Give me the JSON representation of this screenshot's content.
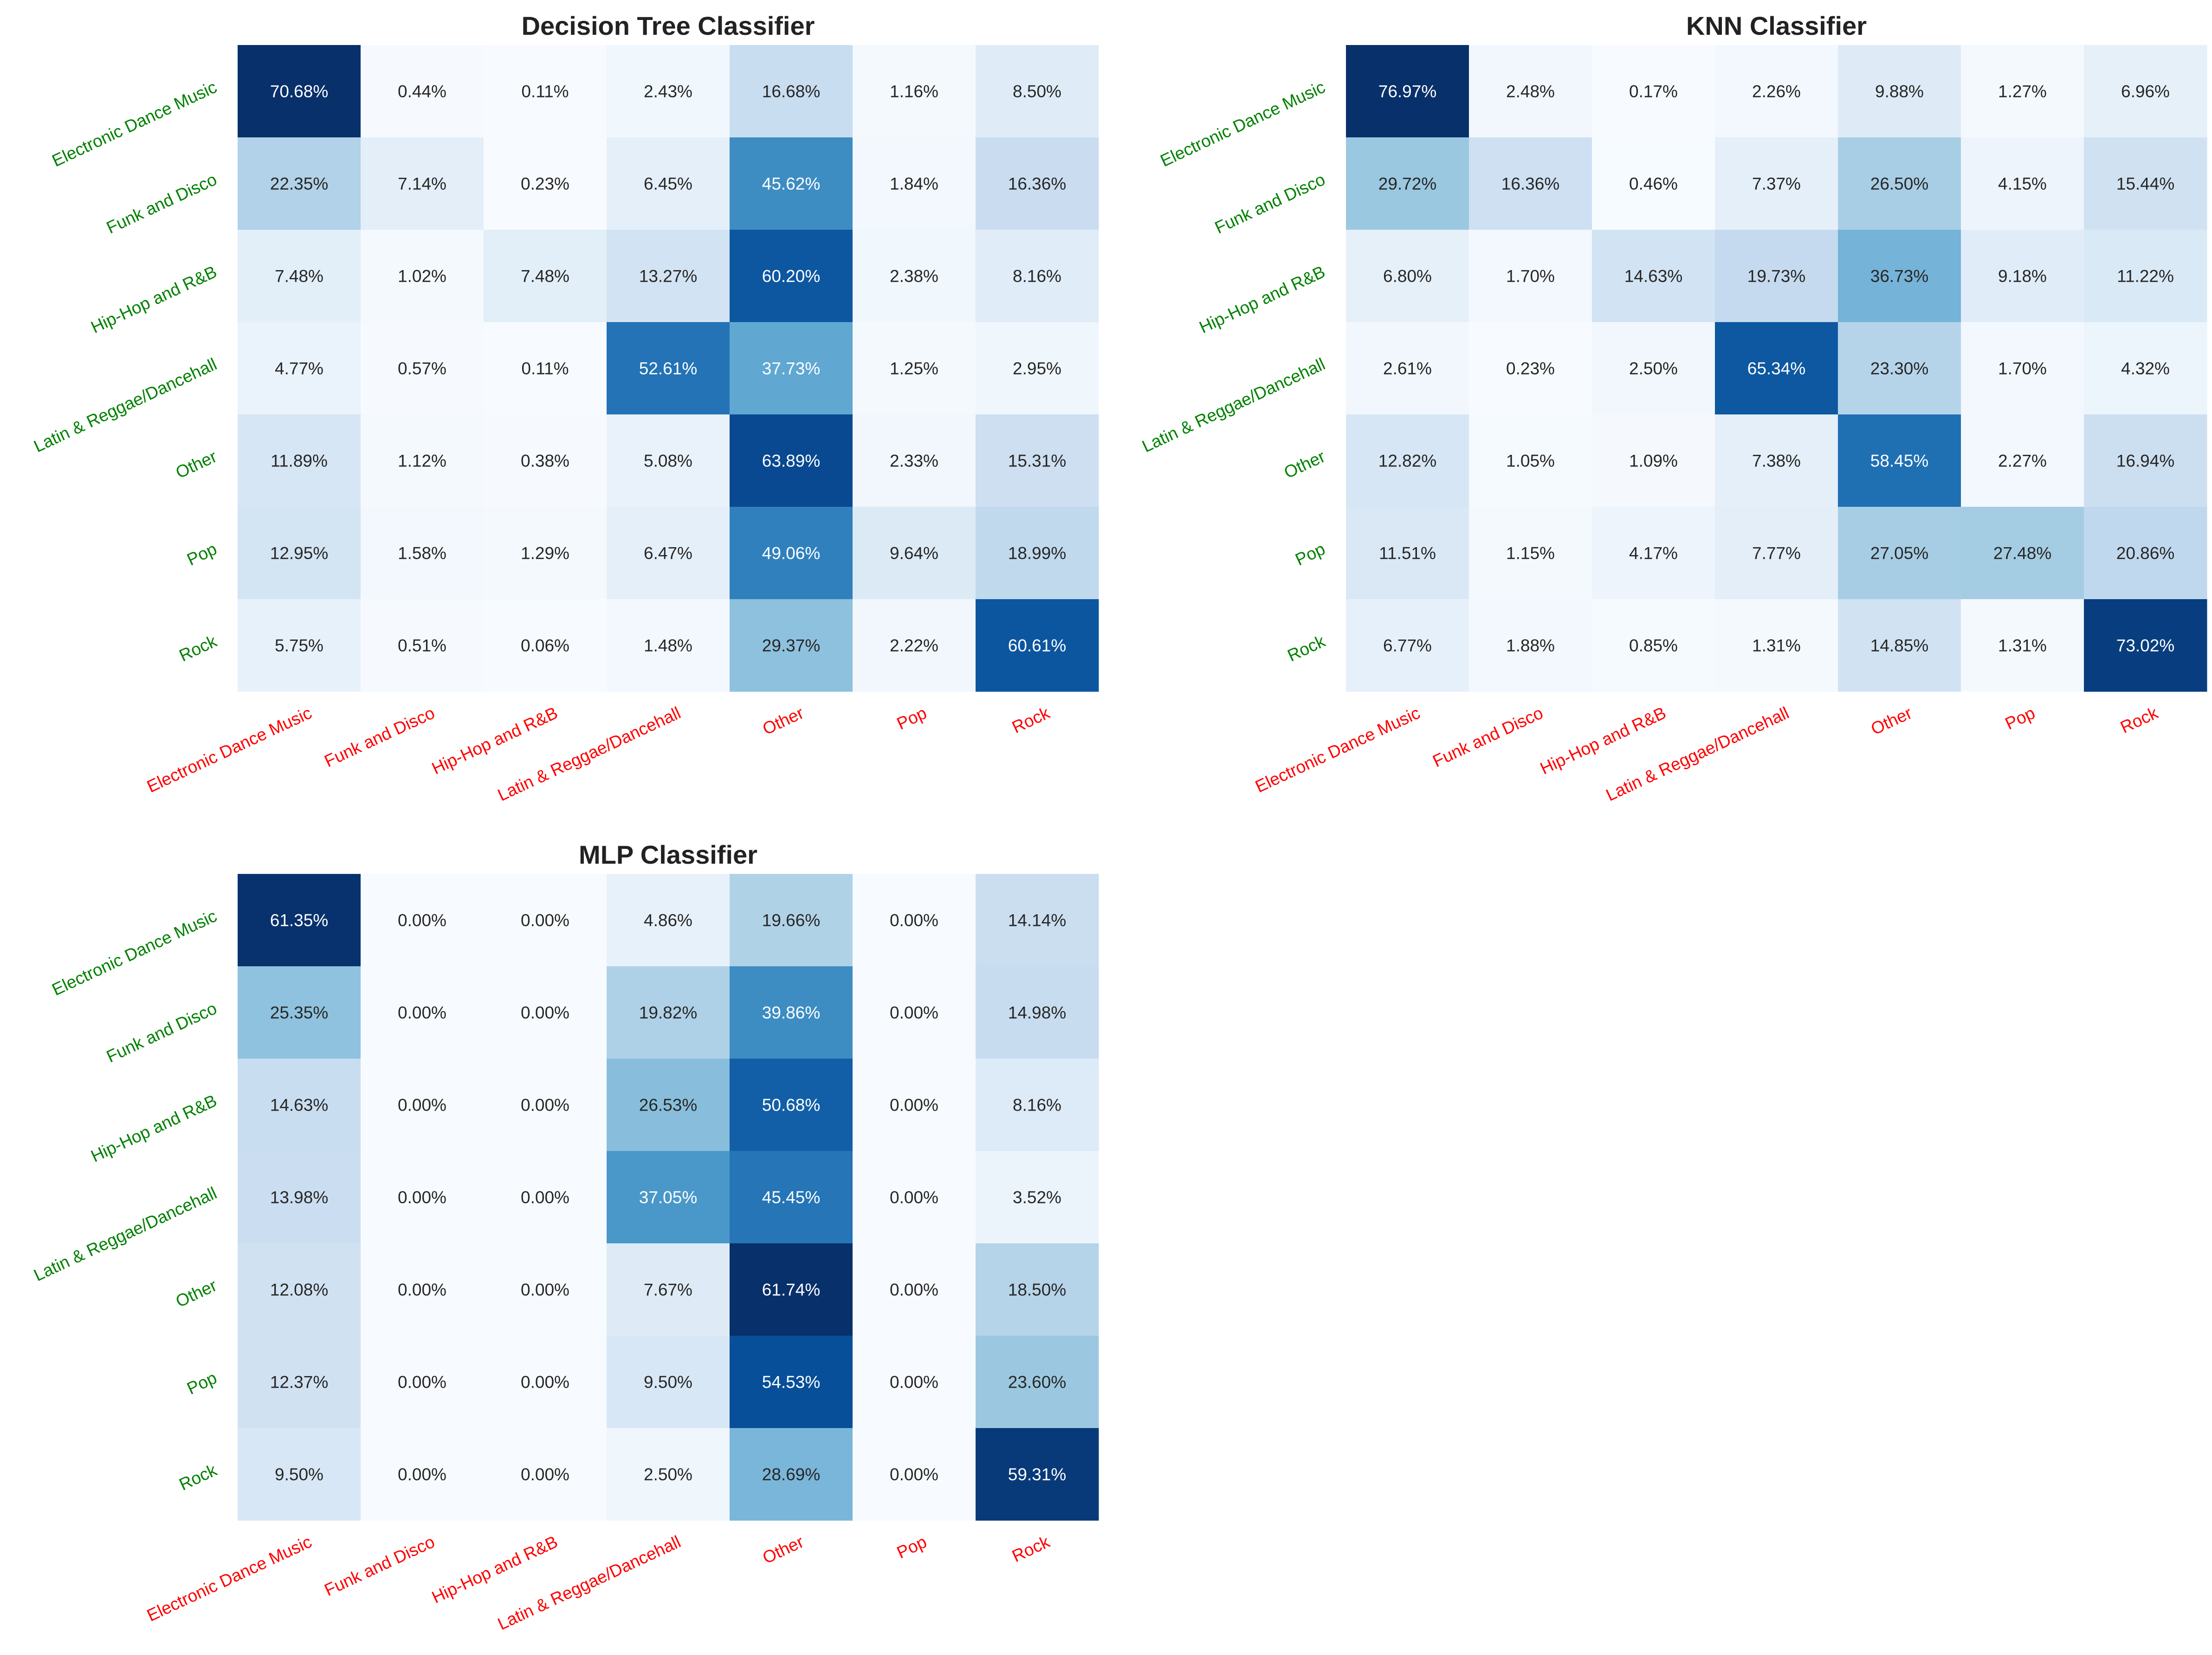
{
  "figure": {
    "colors": {
      "y_tick_color": "#008000",
      "x_tick_color": "#ff0000",
      "title_color": "#222222",
      "colormap": "Blues",
      "text_dark": "#262626",
      "text_light": "#ffffff"
    },
    "value_suffix": "%"
  },
  "chart_data": [
    {
      "type": "heatmap",
      "title": "Decision Tree Classifier",
      "xlabel": "",
      "ylabel": "",
      "x_tick_labels": [
        "Electronic Dance Music",
        "Funk and Disco",
        "Hip-Hop and R&B",
        "Latin & Reggae/Dancehall",
        "Other",
        "Pop",
        "Rock"
      ],
      "y_tick_labels": [
        "Electronic Dance Music",
        "Funk and Disco",
        "Hip-Hop and R&B",
        "Latin & Reggae/Dancehall",
        "Other",
        "Pop",
        "Rock"
      ],
      "values": [
        [
          70.68,
          0.44,
          0.11,
          2.43,
          16.68,
          1.16,
          8.5
        ],
        [
          22.35,
          7.14,
          0.23,
          6.45,
          45.62,
          1.84,
          16.36
        ],
        [
          7.48,
          1.02,
          7.48,
          13.27,
          60.2,
          2.38,
          8.16
        ],
        [
          4.77,
          0.57,
          0.11,
          52.61,
          37.73,
          1.25,
          2.95
        ],
        [
          11.89,
          1.12,
          0.38,
          5.08,
          63.89,
          2.33,
          15.31
        ],
        [
          12.95,
          1.58,
          1.29,
          6.47,
          49.06,
          9.64,
          18.99
        ],
        [
          5.75,
          0.51,
          0.06,
          1.48,
          29.37,
          2.22,
          60.61
        ]
      ]
    },
    {
      "type": "heatmap",
      "title": "KNN Classifier",
      "xlabel": "",
      "ylabel": "",
      "x_tick_labels": [
        "Electronic Dance Music",
        "Funk and Disco",
        "Hip-Hop and R&B",
        "Latin & Reggae/Dancehall",
        "Other",
        "Pop",
        "Rock"
      ],
      "y_tick_labels": [
        "Electronic Dance Music",
        "Funk and Disco",
        "Hip-Hop and R&B",
        "Latin & Reggae/Dancehall",
        "Other",
        "Pop",
        "Rock"
      ],
      "values": [
        [
          76.97,
          2.48,
          0.17,
          2.26,
          9.88,
          1.27,
          6.96
        ],
        [
          29.72,
          16.36,
          0.46,
          7.37,
          26.5,
          4.15,
          15.44
        ],
        [
          6.8,
          1.7,
          14.63,
          19.73,
          36.73,
          9.18,
          11.22
        ],
        [
          2.61,
          0.23,
          2.5,
          65.34,
          23.3,
          1.7,
          4.32
        ],
        [
          12.82,
          1.05,
          1.09,
          7.38,
          58.45,
          2.27,
          16.94
        ],
        [
          11.51,
          1.15,
          4.17,
          7.77,
          27.05,
          27.48,
          20.86
        ],
        [
          6.77,
          1.88,
          0.85,
          1.31,
          14.85,
          1.31,
          73.02
        ]
      ]
    },
    {
      "type": "heatmap",
      "title": "MLP Classifier",
      "xlabel": "",
      "ylabel": "",
      "x_tick_labels": [
        "Electronic Dance Music",
        "Funk and Disco",
        "Hip-Hop and R&B",
        "Latin & Reggae/Dancehall",
        "Other",
        "Pop",
        "Rock"
      ],
      "y_tick_labels": [
        "Electronic Dance Music",
        "Funk and Disco",
        "Hip-Hop and R&B",
        "Latin & Reggae/Dancehall",
        "Other",
        "Pop",
        "Rock"
      ],
      "values": [
        [
          61.35,
          0.0,
          0.0,
          4.86,
          19.66,
          0.0,
          14.14
        ],
        [
          25.35,
          0.0,
          0.0,
          19.82,
          39.86,
          0.0,
          14.98
        ],
        [
          14.63,
          0.0,
          0.0,
          26.53,
          50.68,
          0.0,
          8.16
        ],
        [
          13.98,
          0.0,
          0.0,
          37.05,
          45.45,
          0.0,
          3.52
        ],
        [
          12.08,
          0.0,
          0.0,
          7.67,
          61.74,
          0.0,
          18.5
        ],
        [
          12.37,
          0.0,
          0.0,
          9.5,
          54.53,
          0.0,
          23.6
        ],
        [
          9.5,
          0.0,
          0.0,
          2.5,
          28.69,
          0.0,
          59.31
        ]
      ]
    }
  ]
}
